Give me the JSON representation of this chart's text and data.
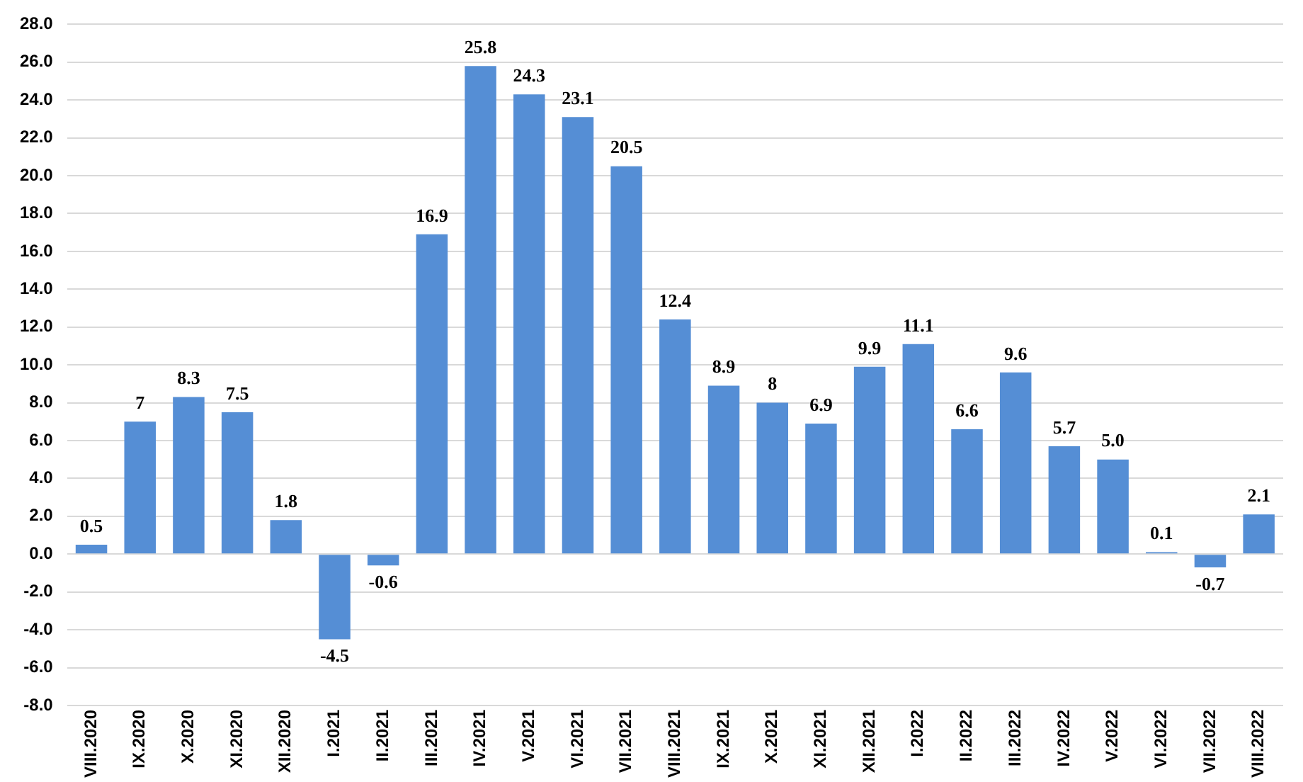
{
  "chart_data": {
    "type": "bar",
    "categories": [
      "VIII.2020",
      "IX.2020",
      "X.2020",
      "XI.2020",
      "XII.2020",
      "I.2021",
      "II.2021",
      "III.2021",
      "IV.2021",
      "V.2021",
      "VI.2021",
      "VII.2021",
      "VIII.2021",
      "IX.2021",
      "X.2021",
      "XI.2021",
      "XII.2021",
      "I.2022",
      "II.2022",
      "III.2022",
      "IV.2022",
      "V.2022",
      "VI.2022",
      "VII.2022",
      "VIII.2022"
    ],
    "values": [
      0.5,
      7,
      8.3,
      7.5,
      1.8,
      -4.5,
      -0.6,
      16.9,
      25.8,
      24.3,
      23.1,
      20.5,
      12.4,
      8.9,
      8,
      6.9,
      9.9,
      11.1,
      6.6,
      9.6,
      5.7,
      5.0,
      0.1,
      -0.7,
      2.1
    ],
    "value_labels": [
      "0.5",
      "7",
      "8.3",
      "7.5",
      "1.8",
      "-4.5",
      "-0.6",
      "16.9",
      "25.8",
      "24.3",
      "23.1",
      "20.5",
      "12.4",
      "8.9",
      "8",
      "6.9",
      "9.9",
      "11.1",
      "6.6",
      "9.6",
      "5.7",
      "5.0",
      "0.1",
      "-0.7",
      "2.1"
    ],
    "color": "#558ed5",
    "ylim": [
      -8,
      28
    ],
    "yticks": [
      {
        "value": -8,
        "label": "-8.0"
      },
      {
        "value": -6,
        "label": "-6.0"
      },
      {
        "value": -4,
        "label": "-4.0"
      },
      {
        "value": -2,
        "label": "-2.0"
      },
      {
        "value": 0,
        "label": "0.0"
      },
      {
        "value": 2,
        "label": "2.0"
      },
      {
        "value": 4,
        "label": "4.0"
      },
      {
        "value": 6,
        "label": "6.0"
      },
      {
        "value": 8,
        "label": "8.0"
      },
      {
        "value": 10,
        "label": "10.0"
      },
      {
        "value": 12,
        "label": "12.0"
      },
      {
        "value": 14,
        "label": "14.0"
      },
      {
        "value": 16,
        "label": "16.0"
      },
      {
        "value": 18,
        "label": "18.0"
      },
      {
        "value": 20,
        "label": "20.0"
      },
      {
        "value": 22,
        "label": "22.0"
      },
      {
        "value": 24,
        "label": "24.0"
      },
      {
        "value": 26,
        "label": "26.0"
      },
      {
        "value": 28,
        "label": "28.0"
      }
    ],
    "grid": "y",
    "legend": false
  }
}
